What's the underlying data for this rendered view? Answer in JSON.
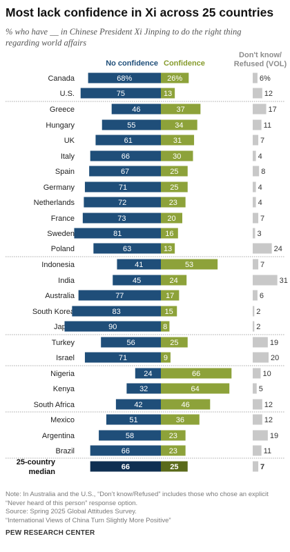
{
  "title": "Most lack confidence in Xi across 25 countries",
  "subtitle": "% who have __ in Chinese President Xi Jinping to do the right thing regarding world affairs",
  "headers": {
    "no_confidence": "No confidence",
    "confidence": "Confidence",
    "dont_know": "Don't know/ Refused (VOL)"
  },
  "colors": {
    "no_confidence": "#1f4e79",
    "confidence": "#8da23a",
    "dont_know": "#c8c8c8",
    "median_no": "#0f2f52",
    "median_conf": "#5a6a1a"
  },
  "chart_data": {
    "type": "bar",
    "orientation": "horizontal-diverging",
    "categories": [
      "Canada",
      "U.S.",
      "Greece",
      "Hungary",
      "UK",
      "Italy",
      "Spain",
      "Germany",
      "Netherlands",
      "France",
      "Sweden",
      "Poland",
      "Indonesia",
      "India",
      "Australia",
      "South Korea",
      "Japan",
      "Turkey",
      "Israel",
      "Nigeria",
      "Kenya",
      "South Africa",
      "Mexico",
      "Argentina",
      "Brazil",
      "25-country median"
    ],
    "series": [
      {
        "name": "No confidence",
        "values": [
          68,
          75,
          46,
          55,
          61,
          66,
          67,
          71,
          72,
          73,
          81,
          63,
          41,
          45,
          77,
          83,
          90,
          56,
          71,
          24,
          32,
          42,
          51,
          58,
          66,
          66
        ]
      },
      {
        "name": "Confidence",
        "values": [
          26,
          13,
          37,
          34,
          31,
          30,
          25,
          25,
          23,
          20,
          16,
          13,
          53,
          24,
          17,
          15,
          8,
          25,
          9,
          66,
          64,
          46,
          36,
          23,
          23,
          25
        ]
      },
      {
        "name": "Don't know/Refused (VOL)",
        "values": [
          6,
          12,
          17,
          11,
          7,
          4,
          8,
          4,
          4,
          7,
          3,
          24,
          7,
          31,
          6,
          2,
          2,
          19,
          20,
          10,
          5,
          12,
          12,
          19,
          11,
          7
        ]
      }
    ],
    "first_row_labels": [
      "68%",
      "26%",
      "6%"
    ],
    "median_label_line1": "25-country",
    "median_label_line2": "median"
  },
  "notes": {
    "note": "Note: In Australia and the U.S., “Don’t know/Refused” includes those who chose an explicit “Never heard of this person” response option.",
    "note_line1": "Note: In Australia and the U.S., “Don’t know/Refused” includes those who chose an explicit",
    "note_line2": "“Never heard of this person” response option.",
    "source": "Source: Spring 2025 Global Attitudes Survey.",
    "report": "“International Views of China Turn Slightly More Positive”",
    "brand": "PEW RESEARCH CENTER"
  }
}
